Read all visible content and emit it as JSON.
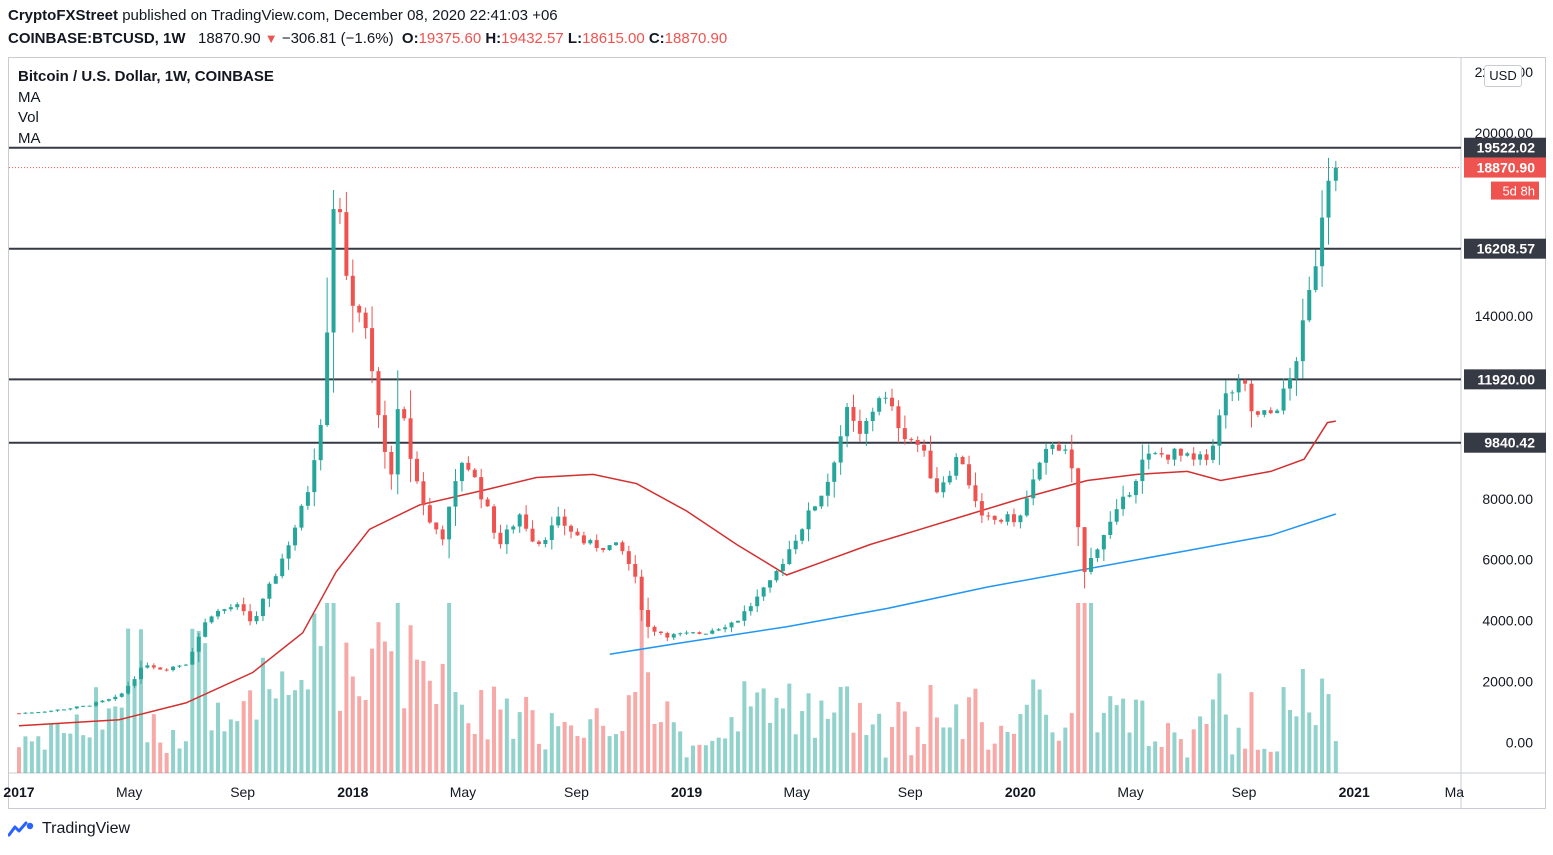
{
  "header": {
    "author": "CryptoFXStreet",
    "published_text": " published on TradingView.com, December 08, 2020 22:41:03 +06",
    "symbol": "COINBASE:BTCUSD, 1W",
    "last_price": "18870.90",
    "change_arrow": "▼",
    "change": "−306.81 (−1.6%)",
    "o_label": "O:",
    "o_value": "19375.60",
    "h_label": "H:",
    "h_value": "19432.57",
    "l_label": "L:",
    "l_value": "18615.00",
    "c_label": "C:",
    "c_value": "18870.90"
  },
  "legend": {
    "title": "Bitcoin / U.S. Dollar, 1W, COINBASE",
    "ma1": "MA",
    "vol": "Vol",
    "ma2": "MA"
  },
  "currency_button": "USD",
  "footer": {
    "brand": "TradingView"
  },
  "chart_data": {
    "type": "candlestick",
    "interval": "1W",
    "ylim": [
      -1000,
      22500
    ],
    "y_ticks": [
      0,
      2000,
      4000,
      6000,
      8000,
      14000,
      20000,
      22000
    ],
    "y_tick_labels": [
      "0.00",
      "2000.00",
      "4000.00",
      "6000.00",
      "8000.00",
      "14000.00",
      "20000.00",
      "22000.00"
    ],
    "x_ticks": [
      {
        "label": "2017",
        "t": 0.0
      },
      {
        "label": "May",
        "t": 0.33
      },
      {
        "label": "Sep",
        "t": 0.67
      },
      {
        "label": "2018",
        "t": 1.0
      },
      {
        "label": "May",
        "t": 1.33
      },
      {
        "label": "Sep",
        "t": 1.67
      },
      {
        "label": "2019",
        "t": 2.0
      },
      {
        "label": "May",
        "t": 2.33
      },
      {
        "label": "Sep",
        "t": 2.67
      },
      {
        "label": "2020",
        "t": 3.0
      },
      {
        "label": "May",
        "t": 3.33
      },
      {
        "label": "Sep",
        "t": 3.67
      },
      {
        "label": "2021",
        "t": 4.0
      },
      {
        "label": "Ma",
        "t": 4.3
      }
    ],
    "horizontal_levels": [
      {
        "value": 19522.02,
        "label": "19522.02"
      },
      {
        "value": 16208.57,
        "label": "16208.57"
      },
      {
        "value": 11920.0,
        "label": "11920.00"
      },
      {
        "value": 9840.42,
        "label": "9840.42"
      }
    ],
    "last_price_label": "18870.90",
    "last_price_value": 18870.9,
    "countdown_label": "5d 8h",
    "price_anchors": [
      {
        "t": 0.0,
        "p": 960
      },
      {
        "t": 0.1,
        "p": 1050
      },
      {
        "t": 0.2,
        "p": 1200
      },
      {
        "t": 0.3,
        "p": 1500
      },
      {
        "t": 0.38,
        "p": 2600
      },
      {
        "t": 0.43,
        "p": 2400
      },
      {
        "t": 0.5,
        "p": 2600
      },
      {
        "t": 0.57,
        "p": 4200
      },
      {
        "t": 0.65,
        "p": 4500
      },
      {
        "t": 0.7,
        "p": 3900
      },
      {
        "t": 0.78,
        "p": 5800
      },
      {
        "t": 0.86,
        "p": 8000
      },
      {
        "t": 0.91,
        "p": 11000
      },
      {
        "t": 0.95,
        "p": 19300
      },
      {
        "t": 0.98,
        "p": 15000
      },
      {
        "t": 1.03,
        "p": 14000
      },
      {
        "t": 1.08,
        "p": 10500
      },
      {
        "t": 1.11,
        "p": 8500
      },
      {
        "t": 1.14,
        "p": 11200
      },
      {
        "t": 1.18,
        "p": 9000
      },
      {
        "t": 1.23,
        "p": 7200
      },
      {
        "t": 1.27,
        "p": 6800
      },
      {
        "t": 1.33,
        "p": 9400
      },
      {
        "t": 1.38,
        "p": 8300
      },
      {
        "t": 1.44,
        "p": 6500
      },
      {
        "t": 1.5,
        "p": 7500
      },
      {
        "t": 1.55,
        "p": 6500
      },
      {
        "t": 1.62,
        "p": 7300
      },
      {
        "t": 1.7,
        "p": 6500
      },
      {
        "t": 1.8,
        "p": 6400
      },
      {
        "t": 1.84,
        "p": 5600
      },
      {
        "t": 1.88,
        "p": 3800
      },
      {
        "t": 1.95,
        "p": 3500
      },
      {
        "t": 2.05,
        "p": 3600
      },
      {
        "t": 2.15,
        "p": 4000
      },
      {
        "t": 2.25,
        "p": 5200
      },
      {
        "t": 2.33,
        "p": 6800
      },
      {
        "t": 2.42,
        "p": 8500
      },
      {
        "t": 2.48,
        "p": 10800
      },
      {
        "t": 2.52,
        "p": 10000
      },
      {
        "t": 2.58,
        "p": 11500
      },
      {
        "t": 2.65,
        "p": 10200
      },
      {
        "t": 2.7,
        "p": 9700
      },
      {
        "t": 2.75,
        "p": 8300
      },
      {
        "t": 2.82,
        "p": 9500
      },
      {
        "t": 2.88,
        "p": 7300
      },
      {
        "t": 2.95,
        "p": 7300
      },
      {
        "t": 3.0,
        "p": 7400
      },
      {
        "t": 3.04,
        "p": 8600
      },
      {
        "t": 3.1,
        "p": 10000
      },
      {
        "t": 3.15,
        "p": 9200
      },
      {
        "t": 3.19,
        "p": 5500
      },
      {
        "t": 3.24,
        "p": 6700
      },
      {
        "t": 3.3,
        "p": 7700
      },
      {
        "t": 3.37,
        "p": 9300
      },
      {
        "t": 3.45,
        "p": 9500
      },
      {
        "t": 3.52,
        "p": 9200
      },
      {
        "t": 3.56,
        "p": 9300
      },
      {
        "t": 3.62,
        "p": 11500
      },
      {
        "t": 3.67,
        "p": 11700
      },
      {
        "t": 3.7,
        "p": 10600
      },
      {
        "t": 3.75,
        "p": 10800
      },
      {
        "t": 3.8,
        "p": 11600
      },
      {
        "t": 3.84,
        "p": 13200
      },
      {
        "t": 3.88,
        "p": 15500
      },
      {
        "t": 3.91,
        "p": 18000
      },
      {
        "t": 3.93,
        "p": 19200
      },
      {
        "t": 3.945,
        "p": 18870.9
      }
    ],
    "ma_short": {
      "color": "#d32f2f",
      "points": [
        {
          "t": 0.0,
          "p": 550
        },
        {
          "t": 0.3,
          "p": 750
        },
        {
          "t": 0.5,
          "p": 1300
        },
        {
          "t": 0.7,
          "p": 2300
        },
        {
          "t": 0.85,
          "p": 3600
        },
        {
          "t": 0.95,
          "p": 5600
        },
        {
          "t": 1.05,
          "p": 7000
        },
        {
          "t": 1.2,
          "p": 7800
        },
        {
          "t": 1.4,
          "p": 8300
        },
        {
          "t": 1.55,
          "p": 8700
        },
        {
          "t": 1.72,
          "p": 8800
        },
        {
          "t": 1.85,
          "p": 8500
        },
        {
          "t": 2.0,
          "p": 7600
        },
        {
          "t": 2.15,
          "p": 6500
        },
        {
          "t": 2.3,
          "p": 5500
        },
        {
          "t": 2.4,
          "p": 5900
        },
        {
          "t": 2.55,
          "p": 6500
        },
        {
          "t": 2.7,
          "p": 7000
        },
        {
          "t": 2.85,
          "p": 7500
        },
        {
          "t": 3.0,
          "p": 8000
        },
        {
          "t": 3.1,
          "p": 8300
        },
        {
          "t": 3.2,
          "p": 8600
        },
        {
          "t": 3.35,
          "p": 8800
        },
        {
          "t": 3.5,
          "p": 8900
        },
        {
          "t": 3.6,
          "p": 8600
        },
        {
          "t": 3.75,
          "p": 8900
        },
        {
          "t": 3.85,
          "p": 9300
        },
        {
          "t": 3.92,
          "p": 10500
        },
        {
          "t": 3.945,
          "p": 10550
        }
      ]
    },
    "ma_long": {
      "color": "#2196f3",
      "points": [
        {
          "t": 1.77,
          "p": 2900
        },
        {
          "t": 2.0,
          "p": 3300
        },
        {
          "t": 2.3,
          "p": 3800
        },
        {
          "t": 2.6,
          "p": 4400
        },
        {
          "t": 2.9,
          "p": 5100
        },
        {
          "t": 3.2,
          "p": 5700
        },
        {
          "t": 3.5,
          "p": 6300
        },
        {
          "t": 3.75,
          "p": 6800
        },
        {
          "t": 3.945,
          "p": 7500
        }
      ]
    },
    "up_color": "#26a69a",
    "down_color": "#ef5350",
    "line_color": "#363a45"
  }
}
